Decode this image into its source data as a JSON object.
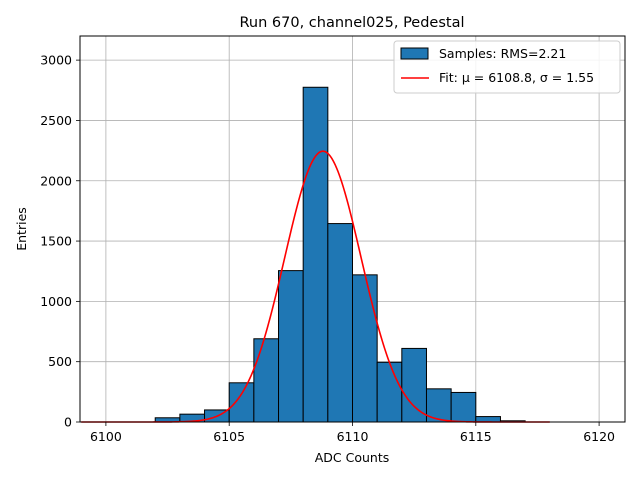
{
  "chart_data": {
    "type": "bar",
    "title": "Run 670, channel025, Pedestal",
    "xlabel": "ADC Counts",
    "ylabel": "Entries",
    "xlim": [
      6098.95,
      6121.05
    ],
    "ylim": [
      0,
      3200
    ],
    "grid": true,
    "legend_position": "top-right",
    "colors": {
      "bars": "#1f77b4",
      "fit": "#ff0000",
      "grid": "#b0b0b0"
    },
    "xticks": [
      6100,
      6105,
      6110,
      6115,
      6120
    ],
    "yticks": [
      0,
      500,
      1000,
      1500,
      2000,
      2500,
      3000
    ],
    "series": [
      {
        "name": "Samples: RMS=2.21",
        "kind": "histogram",
        "bins": [
          {
            "x0": 6099,
            "x1": 6100,
            "value": 0
          },
          {
            "x0": 6100,
            "x1": 6101,
            "value": 0
          },
          {
            "x0": 6101,
            "x1": 6102,
            "value": 0
          },
          {
            "x0": 6102,
            "x1": 6103,
            "value": 35
          },
          {
            "x0": 6103,
            "x1": 6104,
            "value": 65
          },
          {
            "x0": 6104,
            "x1": 6105,
            "value": 100
          },
          {
            "x0": 6105,
            "x1": 6106,
            "value": 325
          },
          {
            "x0": 6106,
            "x1": 6107,
            "value": 690
          },
          {
            "x0": 6107,
            "x1": 6108,
            "value": 1255
          },
          {
            "x0": 6108,
            "x1": 6109,
            "value": 2775
          },
          {
            "x0": 6109,
            "x1": 6110,
            "value": 1645
          },
          {
            "x0": 6110,
            "x1": 6111,
            "value": 1220
          },
          {
            "x0": 6111,
            "x1": 6112,
            "value": 495
          },
          {
            "x0": 6112,
            "x1": 6113,
            "value": 610
          },
          {
            "x0": 6113,
            "x1": 6114,
            "value": 275
          },
          {
            "x0": 6114,
            "x1": 6115,
            "value": 245
          },
          {
            "x0": 6115,
            "x1": 6116,
            "value": 45
          },
          {
            "x0": 6116,
            "x1": 6117,
            "value": 10
          },
          {
            "x0": 6117,
            "x1": 6118,
            "value": 0
          },
          {
            "x0": 6118,
            "x1": 6119,
            "value": 0
          },
          {
            "x0": 6119,
            "x1": 6120,
            "value": 0
          }
        ]
      },
      {
        "name": "Fit: μ = 6108.8, σ = 1.55",
        "kind": "gaussian",
        "mu": 6108.8,
        "sigma": 1.55,
        "amplitude": 2245,
        "x_range": [
          6099,
          6118
        ]
      }
    ]
  }
}
